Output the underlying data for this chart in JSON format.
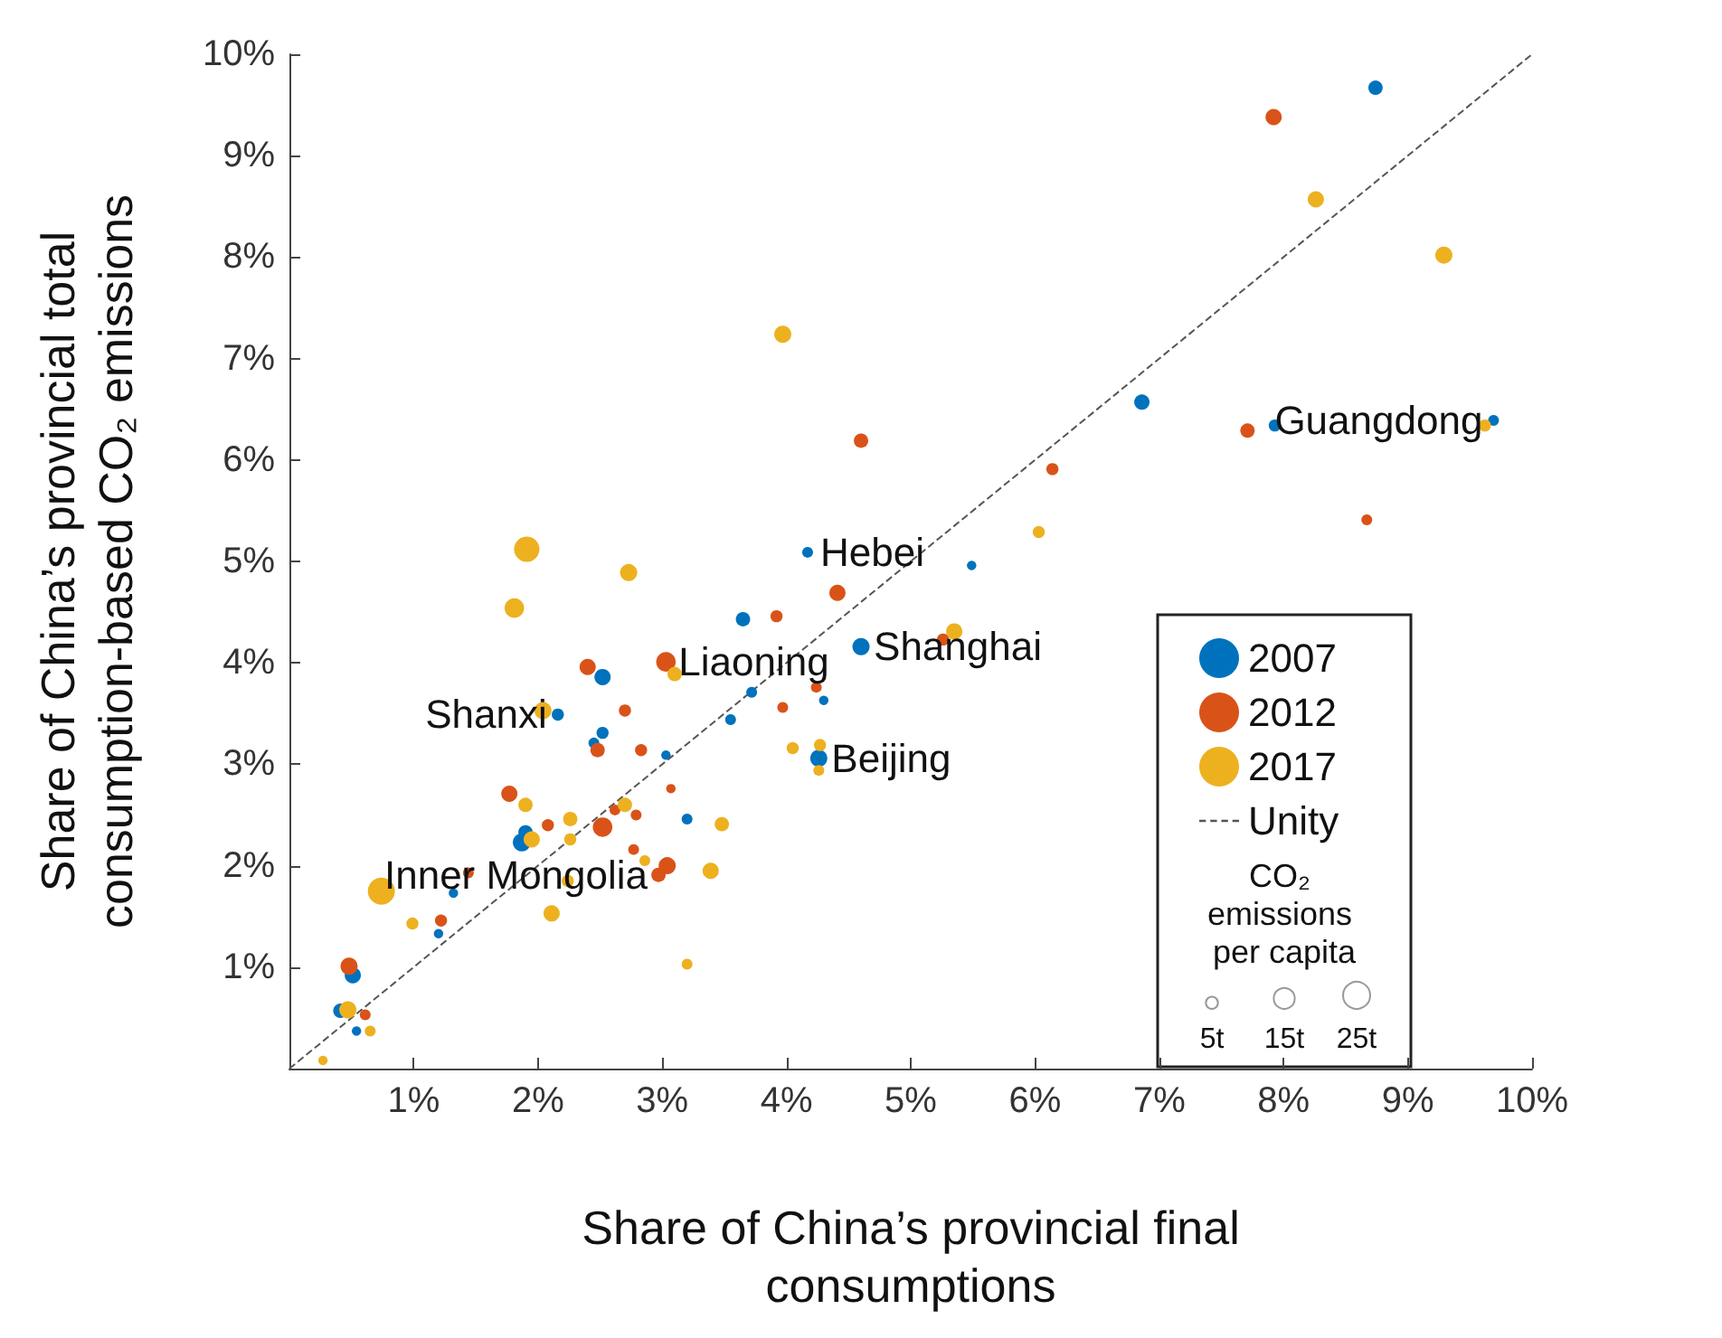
{
  "chart_data": {
    "type": "bubble",
    "xlabel": "Share of China’s provincial final\nconsumptions",
    "ylabel": "Share of China’s provincial total\nconsumption-based CO₂ emissions",
    "legend_title": "CO₂ emissions per capita",
    "legend": "bottom right",
    "grid": false,
    "marker": "circle",
    "xlim": [
      0,
      10
    ],
    "ylim": [
      0,
      10
    ],
    "xticks": [
      {
        "value": 1,
        "label": "1%"
      },
      {
        "value": 2,
        "label": "2%"
      },
      {
        "value": 3,
        "label": "3%"
      },
      {
        "value": 4,
        "label": "4%"
      },
      {
        "value": 5,
        "label": "5%"
      },
      {
        "value": 6,
        "label": "6%"
      },
      {
        "value": 7,
        "label": "7%"
      },
      {
        "value": 8,
        "label": "8%"
      },
      {
        "value": 9,
        "label": "9%"
      },
      {
        "value": 10,
        "label": "10%"
      }
    ],
    "yticks": [
      {
        "value": 1,
        "label": "1%"
      },
      {
        "value": 2,
        "label": "2%"
      },
      {
        "value": 3,
        "label": "3%"
      },
      {
        "value": 4,
        "label": "4%"
      },
      {
        "value": 5,
        "label": "5%"
      },
      {
        "value": 6,
        "label": "6%"
      },
      {
        "value": 7,
        "label": "7%"
      },
      {
        "value": 8,
        "label": "8%"
      },
      {
        "value": 9,
        "label": "9%"
      },
      {
        "value": 10,
        "label": "10%"
      }
    ],
    "size_legend": [
      {
        "value": 5,
        "label": "5t"
      },
      {
        "value": 15,
        "label": "15t"
      },
      {
        "value": 25,
        "label": "25t"
      }
    ],
    "series": [
      {
        "name": "2007",
        "color": "#0072bd",
        "x": [
          8.74,
          6.86,
          7.93,
          9.69,
          4.17,
          5.49,
          4.6,
          3.65,
          4.26,
          4.3,
          3.72,
          3.55,
          3.03,
          3.2,
          2.52,
          2.16,
          2.52,
          2.45,
          1.87,
          1.9,
          1.32,
          1.2,
          0.51,
          0.41,
          0.54
        ],
        "values": [
          9.67,
          6.57,
          6.34,
          6.39,
          5.09,
          4.96,
          4.16,
          4.43,
          3.06,
          3.63,
          3.71,
          3.44,
          3.09,
          2.46,
          3.86,
          3.49,
          3.31,
          3.21,
          2.23,
          2.33,
          1.73,
          1.33,
          0.92,
          0.57,
          0.37
        ],
        "sizes": [
          7,
          8,
          5,
          4,
          4,
          3,
          10,
          7,
          10,
          3,
          4,
          4,
          3,
          4,
          9,
          5,
          5,
          4,
          11,
          7,
          3,
          3,
          9,
          7,
          3
        ]
      },
      {
        "name": "2012",
        "color": "#d95319",
        "x": [
          7.92,
          7.71,
          6.14,
          8.67,
          4.6,
          4.41,
          3.92,
          3.03,
          4.24,
          3.97,
          5.26,
          3.07,
          2.4,
          2.7,
          2.48,
          2.83,
          1.77,
          2.52,
          2.08,
          2.62,
          2.79,
          2.77,
          3.04,
          2.97,
          1.44,
          1.22,
          0.48,
          0.61
        ],
        "values": [
          9.38,
          6.29,
          5.91,
          5.41,
          6.19,
          4.69,
          4.46,
          4.01,
          3.76,
          3.56,
          4.23,
          2.76,
          3.96,
          3.53,
          3.14,
          3.14,
          2.71,
          2.38,
          2.4,
          2.55,
          2.5,
          2.16,
          2.0,
          1.91,
          1.93,
          1.46,
          1.01,
          0.53
        ],
        "sizes": [
          9,
          7,
          5,
          4,
          7,
          9,
          5,
          13,
          4,
          4,
          5,
          3,
          9,
          5,
          7,
          5,
          9,
          13,
          5,
          4,
          4,
          4,
          10,
          7,
          4,
          5,
          10,
          4
        ]
      },
      {
        "name": "2017",
        "color": "#edb120",
        "x": [
          8.26,
          9.29,
          6.03,
          9.62,
          3.97,
          2.73,
          5.35,
          3.1,
          4.27,
          4.26,
          4.05,
          3.48,
          3.39,
          3.2,
          2.86,
          2.7,
          1.91,
          1.81,
          2.04,
          1.9,
          2.26,
          2.26,
          1.95,
          2.24,
          2.11,
          0.74,
          0.99,
          0.47,
          0.65,
          0.27
        ],
        "values": [
          8.57,
          8.02,
          5.29,
          6.34,
          7.24,
          4.89,
          4.31,
          3.89,
          3.19,
          2.94,
          3.16,
          2.41,
          1.95,
          1.03,
          2.05,
          2.6,
          5.12,
          4.54,
          3.53,
          2.6,
          2.46,
          2.26,
          2.26,
          1.85,
          1.53,
          1.75,
          1.43,
          0.58,
          0.37,
          0.08
        ],
        "sizes": [
          9,
          10,
          5,
          5,
          10,
          10,
          9,
          7,
          5,
          4,
          5,
          7,
          9,
          4,
          4,
          7,
          22,
          13,
          10,
          7,
          7,
          5,
          9,
          5,
          9,
          25,
          5,
          10,
          4,
          3
        ]
      },
      {
        "name": "Unity",
        "type": "line",
        "color": "#555555",
        "line_style": "dashed",
        "marker": "none",
        "x": [
          0,
          10
        ],
        "values": [
          0,
          10
        ]
      }
    ],
    "annotations": [
      {
        "text": "Hebei",
        "x": 4.17,
        "y": 5.09
      },
      {
        "text": "Liaoning",
        "x": 3.03,
        "y": 4.01
      },
      {
        "text": "Shanghai",
        "x": 4.6,
        "y": 4.16
      },
      {
        "text": "Beijing",
        "x": 4.26,
        "y": 3.06
      },
      {
        "text": "Shanxi",
        "x": 2.16,
        "y": 3.49
      },
      {
        "text": "Inner Mongolia",
        "x": 2.97,
        "y": 1.91
      },
      {
        "text": "Guangdong",
        "x": 9.69,
        "y": 6.39
      }
    ]
  }
}
